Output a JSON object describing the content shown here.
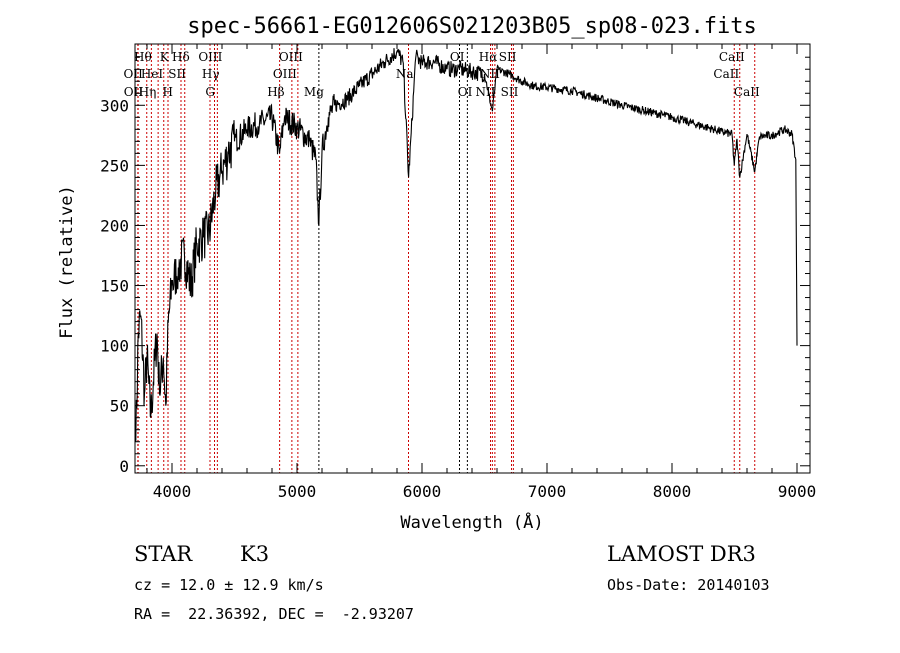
{
  "chart_data": {
    "type": "line",
    "title": "spec-56661-EG012606S021203B05_sp08-023.fits",
    "xlabel": "Wavelength (Å)",
    "ylabel": "Flux (relative)",
    "xlim": [
      3704,
      9104
    ],
    "ylim": [
      -6,
      351
    ],
    "xticks": [
      4000,
      5000,
      6000,
      7000,
      8000,
      9000
    ],
    "yticks": [
      0,
      50,
      100,
      150,
      200,
      250,
      300
    ],
    "grid": false,
    "series": [
      {
        "name": "spectrum",
        "color": "#000000",
        "x": [
          3710,
          3730,
          3750,
          3780,
          3800,
          3830,
          3850,
          3880,
          3900,
          3930,
          3950,
          3970,
          4000,
          4050,
          4100,
          4150,
          4200,
          4250,
          4300,
          4350,
          4400,
          4450,
          4500,
          4600,
          4700,
          4800,
          4860,
          4900,
          5000,
          5100,
          5150,
          5175,
          5200,
          5250,
          5300,
          5400,
          5500,
          5600,
          5700,
          5800,
          5850,
          5893,
          5950,
          6000,
          6100,
          6200,
          6300,
          6400,
          6500,
          6563,
          6600,
          6700,
          6800,
          6900,
          7000,
          7200,
          7400,
          7600,
          7800,
          8000,
          8200,
          8400,
          8480,
          8498,
          8520,
          8542,
          8600,
          8662,
          8700,
          8800,
          8900,
          8960,
          8990,
          9000
        ],
        "y": [
          20,
          110,
          125,
          60,
          90,
          40,
          70,
          110,
          60,
          90,
          50,
          120,
          150,
          165,
          175,
          150,
          185,
          190,
          195,
          230,
          245,
          260,
          270,
          280,
          285,
          290,
          260,
          290,
          282,
          270,
          255,
          200,
          262,
          290,
          300,
          305,
          316,
          326,
          336,
          345,
          335,
          240,
          340,
          336,
          336,
          330,
          330,
          328,
          326,
          295,
          330,
          326,
          320,
          316,
          315,
          312,
          306,
          300,
          295,
          290,
          284,
          278,
          276,
          250,
          272,
          240,
          276,
          245,
          274,
          275,
          280,
          276,
          255,
          100
        ]
      }
    ],
    "lines": [
      {
        "name": "OII",
        "wave": 3727,
        "row": 2,
        "color": "#cc0000"
      },
      {
        "name": "OII",
        "wave": 3729,
        "row": 3,
        "color": "#cc0000"
      },
      {
        "name": "Hθ",
        "wave": 3798,
        "row": 1,
        "color": "#cc0000"
      },
      {
        "name": "Hη",
        "wave": 3835,
        "row": 3,
        "color": "#cc0000"
      },
      {
        "name": "HeI",
        "wave": 3889,
        "row": 2,
        "color": "#cc0000"
      },
      {
        "name": "K",
        "wave": 3934,
        "row": 1,
        "color": "#cc0000"
      },
      {
        "name": "H",
        "wave": 3968,
        "row": 3,
        "color": "#cc0000"
      },
      {
        "name": "SII",
        "wave": 4072,
        "row": 2,
        "color": "#cc0000"
      },
      {
        "name": "Hδ",
        "wave": 4102,
        "row": 1,
        "color": "#cc0000"
      },
      {
        "name": "G",
        "wave": 4304,
        "row": 3,
        "color": "#cc0000"
      },
      {
        "name": "Hγ",
        "wave": 4340,
        "row": 2,
        "color": "#cc0000"
      },
      {
        "name": "OIII",
        "wave": 4363,
        "row": 1,
        "color": "#cc0000"
      },
      {
        "name": "Hβ",
        "wave": 4861,
        "row": 3,
        "color": "#cc0000"
      },
      {
        "name": "OIII",
        "wave": 4959,
        "row": 2,
        "color": "#cc0000"
      },
      {
        "name": "OIII",
        "wave": 5007,
        "row": 1,
        "color": "#cc0000"
      },
      {
        "name": "Mg",
        "wave": 5175,
        "row": 3,
        "color": "#000000"
      },
      {
        "name": "Na",
        "wave": 5892,
        "row": 2,
        "color": "#cc0000"
      },
      {
        "name": "OI",
        "wave": 6300,
        "row": 1,
        "color": "#000000"
      },
      {
        "name": "OI",
        "wave": 6363,
        "row": 3,
        "color": "#000000"
      },
      {
        "name": "NII",
        "wave": 6548,
        "row": 3,
        "color": "#cc0000"
      },
      {
        "name": "Hα",
        "wave": 6563,
        "row": 1,
        "color": "#cc0000"
      },
      {
        "name": "NII",
        "wave": 6583,
        "row": 2,
        "color": "#cc0000"
      },
      {
        "name": "SII",
        "wave": 6716,
        "row": 1,
        "color": "#cc0000"
      },
      {
        "name": "SII",
        "wave": 6731,
        "row": 3,
        "color": "#cc0000"
      },
      {
        "name": "CaII",
        "wave": 8498,
        "row": 2,
        "color": "#cc0000"
      },
      {
        "name": "CaII",
        "wave": 8542,
        "row": 1,
        "color": "#cc0000"
      },
      {
        "name": "CaII",
        "wave": 8662,
        "row": 3,
        "color": "#cc0000"
      }
    ]
  },
  "info": {
    "class": "STAR",
    "subclass": "K3",
    "cz": "cz = 12.0 ± 12.9 km/s",
    "coords": "RA =  22.36392, DEC =  -2.93207",
    "survey": "LAMOST DR3",
    "obs_date": "Obs-Date: 20140103"
  }
}
